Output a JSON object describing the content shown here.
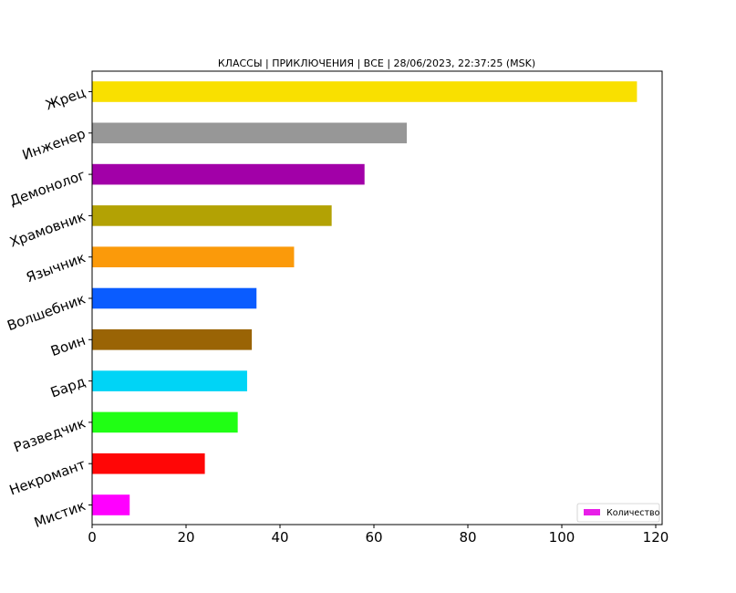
{
  "chart_data": {
    "type": "bar",
    "orientation": "horizontal",
    "title": "КЛАССЫ | ПРИКЛЮЧЕНИЯ | ВСЕ | 28/06/2023, 22:37:25 (MSK)",
    "xlabel": "",
    "ylabel": "",
    "xlim": [
      0,
      122
    ],
    "xticks": [
      "0",
      "20",
      "40",
      "60",
      "80",
      "100",
      "120"
    ],
    "grid": false,
    "legend": {
      "position": "bottom-right",
      "entries": [
        "Количество"
      ],
      "color": "#e81ee8"
    },
    "categories": [
      "Жрец",
      "Инженер",
      "Демонолог",
      "Храмовник",
      "Язычник",
      "Волшебник",
      "Воин",
      "Бард",
      "Разведчик",
      "Некромант",
      "Мистик"
    ],
    "values": [
      116,
      67,
      58,
      51,
      43,
      35,
      34,
      33,
      31,
      24,
      8
    ],
    "colors": [
      "#f9e000",
      "#979797",
      "#a200a8",
      "#b3a204",
      "#fb9a0a",
      "#0a5cff",
      "#9a6405",
      "#00d4f6",
      "#20ff14",
      "#ff0606",
      "#ff00ff"
    ]
  }
}
